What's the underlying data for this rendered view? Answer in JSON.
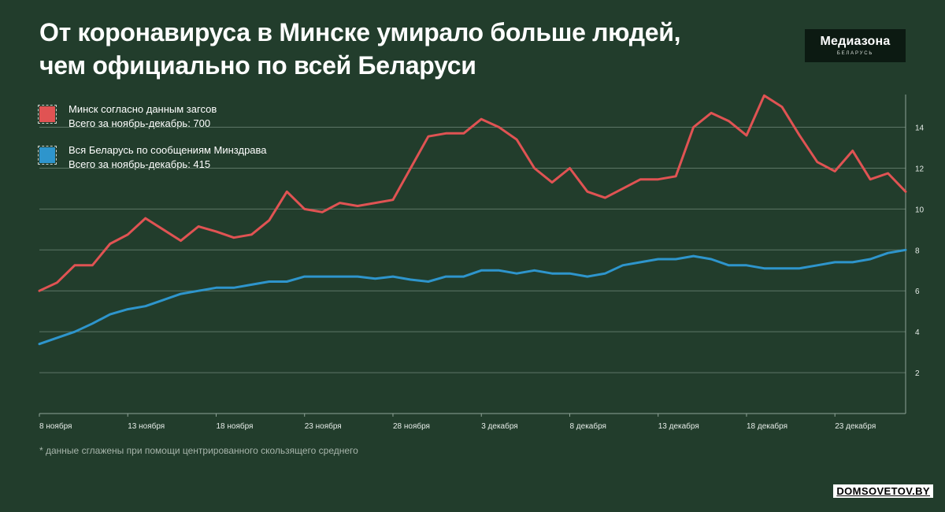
{
  "title_lines": [
    "От коронавируса в Минске умирало больше людей,",
    "чем официально по всей Беларуси"
  ],
  "logo": {
    "main": "Медиазона",
    "sub": "БЕЛАРУСЬ"
  },
  "legend": [
    {
      "line1": "Минск согласно данным загсов",
      "line2": "Всего за ноябрь-декабрь: 700",
      "color": "#e05353"
    },
    {
      "line1": "Вся Беларусь по сообщениям Минздрава",
      "line2": "Всего за ноябрь-декабрь: 415",
      "color": "#2e95cc"
    }
  ],
  "footnote": "* данные сглажены при помощи центрированного скользящего среднего",
  "source": "DOMSOVETOV.BY",
  "chart_data": {
    "type": "line",
    "x_start": "8 ноября",
    "x_tick_labels": [
      "8 ноября",
      "13 ноября",
      "18 ноября",
      "23 ноября",
      "28 ноября",
      "3 декабря",
      "8 декабря",
      "13 декабря",
      "18 декабря",
      "23 декабря"
    ],
    "y_ticks": [
      2,
      4,
      6,
      8,
      10,
      12,
      14
    ],
    "ylim": [
      0,
      15.6
    ],
    "grid": true,
    "series": [
      {
        "name": "Минск согласно данным загсов",
        "color": "#e05353",
        "values": [
          6.0,
          6.4,
          7.25,
          7.25,
          8.3,
          8.75,
          9.55,
          9.0,
          8.45,
          9.15,
          8.9,
          8.6,
          8.75,
          9.45,
          10.85,
          10.0,
          9.85,
          10.3,
          10.15,
          10.3,
          10.45,
          12.0,
          13.55,
          13.7,
          13.7,
          14.4,
          14.0,
          13.4,
          12.0,
          11.3,
          12.0,
          10.85,
          10.55,
          11.0,
          11.45,
          11.45,
          11.6,
          14.0,
          14.7,
          14.3,
          13.6,
          15.55,
          15.0,
          13.6,
          12.3,
          11.85,
          12.85,
          11.45,
          11.75,
          10.85
        ]
      },
      {
        "name": "Вся Беларусь по сообщениям Минздрава",
        "color": "#2e95cc",
        "values": [
          3.4,
          3.7,
          4.0,
          4.4,
          4.85,
          5.1,
          5.25,
          5.55,
          5.85,
          6.0,
          6.15,
          6.15,
          6.3,
          6.45,
          6.45,
          6.7,
          6.7,
          6.7,
          6.7,
          6.6,
          6.7,
          6.55,
          6.45,
          6.7,
          6.7,
          7.0,
          7.0,
          6.85,
          7.0,
          6.85,
          6.85,
          6.7,
          6.85,
          7.25,
          7.4,
          7.55,
          7.55,
          7.7,
          7.55,
          7.25,
          7.25,
          7.1,
          7.1,
          7.1,
          7.25,
          7.4,
          7.4,
          7.55,
          7.85,
          8.0
        ]
      }
    ]
  }
}
